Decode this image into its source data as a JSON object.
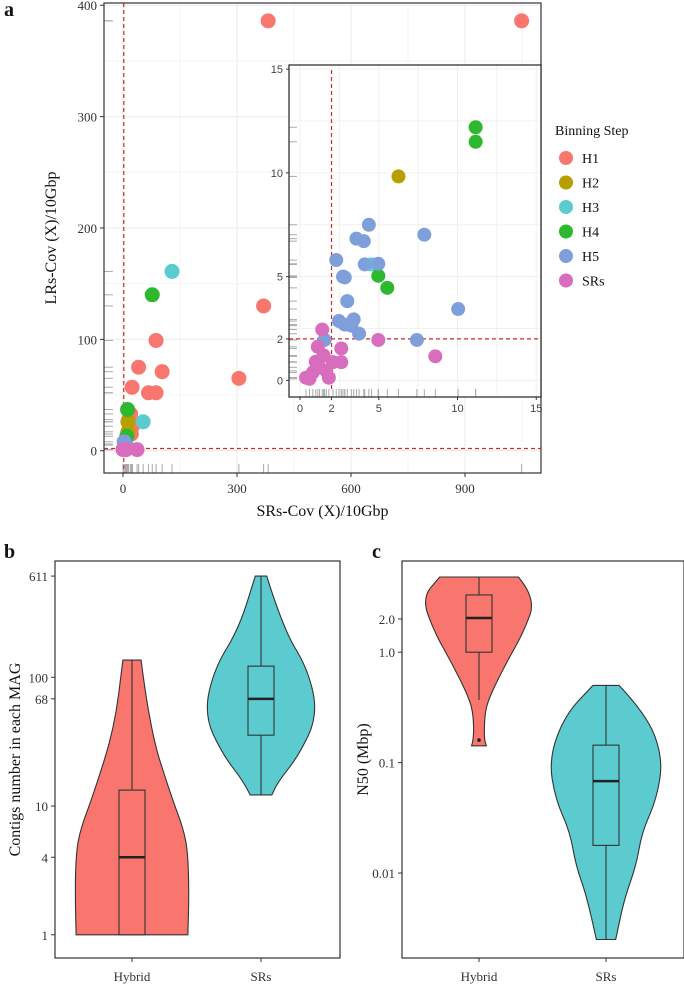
{
  "panel_labels": {
    "a": "a",
    "b": "b",
    "c": "c"
  },
  "chart_data": [
    {
      "id": "a",
      "type": "scatter",
      "title": "",
      "xlabel": "SRs-Cov (X)/10Gbp",
      "ylabel": "LRs-Cov (X)/10Gbp",
      "xlim": [
        -50,
        1100
      ],
      "ylim": [
        -20,
        402
      ],
      "xticks": [
        0,
        300,
        600,
        900
      ],
      "yticks": [
        0,
        100,
        200,
        300,
        400
      ],
      "grid": true,
      "reference_lines": {
        "x": 2,
        "y": 2
      },
      "legend": {
        "title": "Binning Step",
        "position": "right"
      },
      "series": [
        {
          "name": "H1",
          "color": "#F8766D",
          "points": [
            [
              382,
              386
            ],
            [
              1049,
              386
            ],
            [
              370,
              130
            ],
            [
              305,
              65
            ],
            [
              87,
              99
            ],
            [
              41,
              75
            ],
            [
              103,
              71
            ],
            [
              24,
              57
            ],
            [
              67,
              52
            ],
            [
              87,
              52
            ],
            [
              20,
              33
            ],
            [
              25,
              22
            ],
            [
              22,
              15
            ],
            [
              15,
              28
            ]
          ]
        },
        {
          "name": "H2",
          "color": "#B79F00",
          "points": [
            [
              13,
              26
            ],
            [
              13,
              17
            ]
          ]
        },
        {
          "name": "H3",
          "color": "#5BCBD0",
          "points": [
            [
              129,
              161
            ],
            [
              53,
              26
            ],
            [
              8,
              6
            ]
          ]
        },
        {
          "name": "H4",
          "color": "#2DB82D",
          "points": [
            [
              77,
              140
            ],
            [
              12,
              37
            ],
            [
              10,
              13
            ]
          ]
        },
        {
          "name": "H5",
          "color": "#7F9FDB",
          "points": [
            [
              3,
              8
            ],
            [
              6,
              5
            ]
          ]
        },
        {
          "name": "SRs",
          "color": "#D96DBD",
          "points": [
            [
              0,
              1
            ],
            [
              37,
              1
            ],
            [
              8,
              1
            ]
          ]
        }
      ],
      "inset": {
        "xlim": [
          -0.7,
          15.3
        ],
        "ylim": [
          -0.8,
          15.2
        ],
        "xticks": [
          0,
          2,
          5,
          10,
          15
        ],
        "yticks": [
          0,
          2,
          5,
          10,
          15
        ],
        "reference_lines": {
          "x": 2,
          "y": 2
        },
        "series": [
          {
            "name": "H2",
            "color": "#B79F00",
            "points": [
              [
                6.25,
                9.83
              ]
            ]
          },
          {
            "name": "H3",
            "color": "#5BCBD0",
            "points": [
              [
                4.54,
                5.59
              ]
            ]
          },
          {
            "name": "H4",
            "color": "#2DB82D",
            "points": [
              [
                11.15,
                12.2
              ],
              [
                11.15,
                11.5
              ],
              [
                4.97,
                5.04
              ],
              [
                5.54,
                4.46
              ]
            ]
          },
          {
            "name": "H5",
            "color": "#7F9FDB",
            "points": [
              [
                4.37,
                7.5
              ],
              [
                3.58,
                6.83
              ],
              [
                4.05,
                6.71
              ],
              [
                7.89,
                7.02
              ],
              [
                2.3,
                5.8
              ],
              [
                4.11,
                5.59
              ],
              [
                4.97,
                5.62
              ],
              [
                2.73,
                5.0
              ],
              [
                2.84,
                4.96
              ],
              [
                3.0,
                3.82
              ],
              [
                2.47,
                2.86
              ],
              [
                2.84,
                2.69
              ],
              [
                3.41,
                2.94
              ],
              [
                3.75,
                2.25
              ],
              [
                7.42,
                1.95
              ],
              [
                10.04,
                3.44
              ],
              [
                3.26,
                2.64
              ],
              [
                1.56,
                1.95
              ]
            ]
          },
          {
            "name": "SRs",
            "color": "#D96DBD",
            "points": [
              [
                1.41,
                2.45
              ],
              [
                4.97,
                1.95
              ],
              [
                8.59,
                1.16
              ],
              [
                2.62,
                1.54
              ],
              [
                2.62,
                0.88
              ],
              [
                1.13,
                1.62
              ],
              [
                0.6,
                0.08
              ],
              [
                0.38,
                0.13
              ],
              [
                1.24,
                0.63
              ],
              [
                1.66,
                0.46
              ],
              [
                1.83,
                0.13
              ],
              [
                0.81,
                0.38
              ],
              [
                2.09,
                0.88
              ],
              [
                1.0,
                0.9
              ],
              [
                1.5,
                1.2
              ]
            ]
          }
        ]
      }
    },
    {
      "id": "b",
      "type": "violin",
      "xlabel": "",
      "ylabel": "Contigs number in each MAG",
      "yscale": "log10",
      "ylim": [
        0.66,
        800
      ],
      "yticks": [
        1,
        4,
        10,
        68,
        100,
        611
      ],
      "categories": [
        "Hybrid",
        "SRs"
      ],
      "groups": [
        {
          "name": "Hybrid",
          "color": "#F8766D",
          "min": 1,
          "q1": 1,
          "median": 4,
          "q3": 13.3,
          "max": 136,
          "density": [
            [
              1,
              0.98
            ],
            [
              2.04,
              1
            ],
            [
              4.4,
              0.98
            ],
            [
              6.7,
              0.9
            ],
            [
              12.2,
              0.68
            ],
            [
              40,
              0.31
            ],
            [
              136,
              0.16
            ]
          ]
        },
        {
          "name": "SRs",
          "color": "#5BCBD0",
          "min": 12.2,
          "q1": 35.5,
          "median": 68,
          "q3": 122,
          "max": 611,
          "density": [
            [
              12.2,
              0.19
            ],
            [
              15.4,
              0.3
            ],
            [
              25,
              0.67
            ],
            [
              51,
              1
            ],
            [
              117,
              0.82
            ],
            [
              238,
              0.39
            ],
            [
              611,
              0.1
            ]
          ]
        }
      ]
    },
    {
      "id": "c",
      "type": "violin",
      "xlabel": "",
      "ylabel": "N50 (Mbp)",
      "yscale": "log10",
      "ylim": [
        0.0017,
        6.7
      ],
      "yticks": [
        0.01,
        0.1,
        1.0,
        2.0
      ],
      "ytick_labels": [
        "0.01",
        "0.1",
        "1.0",
        "2.0"
      ],
      "categories": [
        "Hybrid",
        "SRs"
      ],
      "groups": [
        {
          "name": "Hybrid",
          "color": "#F8766D",
          "min": 0.37,
          "q1": 1.0,
          "median": 2.04,
          "q3": 3.3,
          "max": 4.8,
          "outliers": [
            0.16
          ],
          "density": [
            [
              0.142,
              0.13
            ],
            [
              0.165,
              0.09
            ],
            [
              0.27,
              0.1
            ],
            [
              0.38,
              0.17
            ],
            [
              0.77,
              0.46
            ],
            [
              1.54,
              0.79
            ],
            [
              3.1,
              1
            ],
            [
              4.8,
              0.69
            ]
          ]
        },
        {
          "name": "SRs",
          "color": "#5BCBD0",
          "min": 0.0025,
          "q1": 0.0178,
          "median": 0.068,
          "q3": 0.144,
          "max": 0.5,
          "density": [
            [
              0.0025,
              0.17
            ],
            [
              0.0058,
              0.32
            ],
            [
              0.0117,
              0.53
            ],
            [
              0.0234,
              0.63
            ],
            [
              0.047,
              0.89
            ],
            [
              0.109,
              1
            ],
            [
              0.27,
              0.72
            ],
            [
              0.5,
              0.23
            ]
          ]
        }
      ]
    }
  ]
}
